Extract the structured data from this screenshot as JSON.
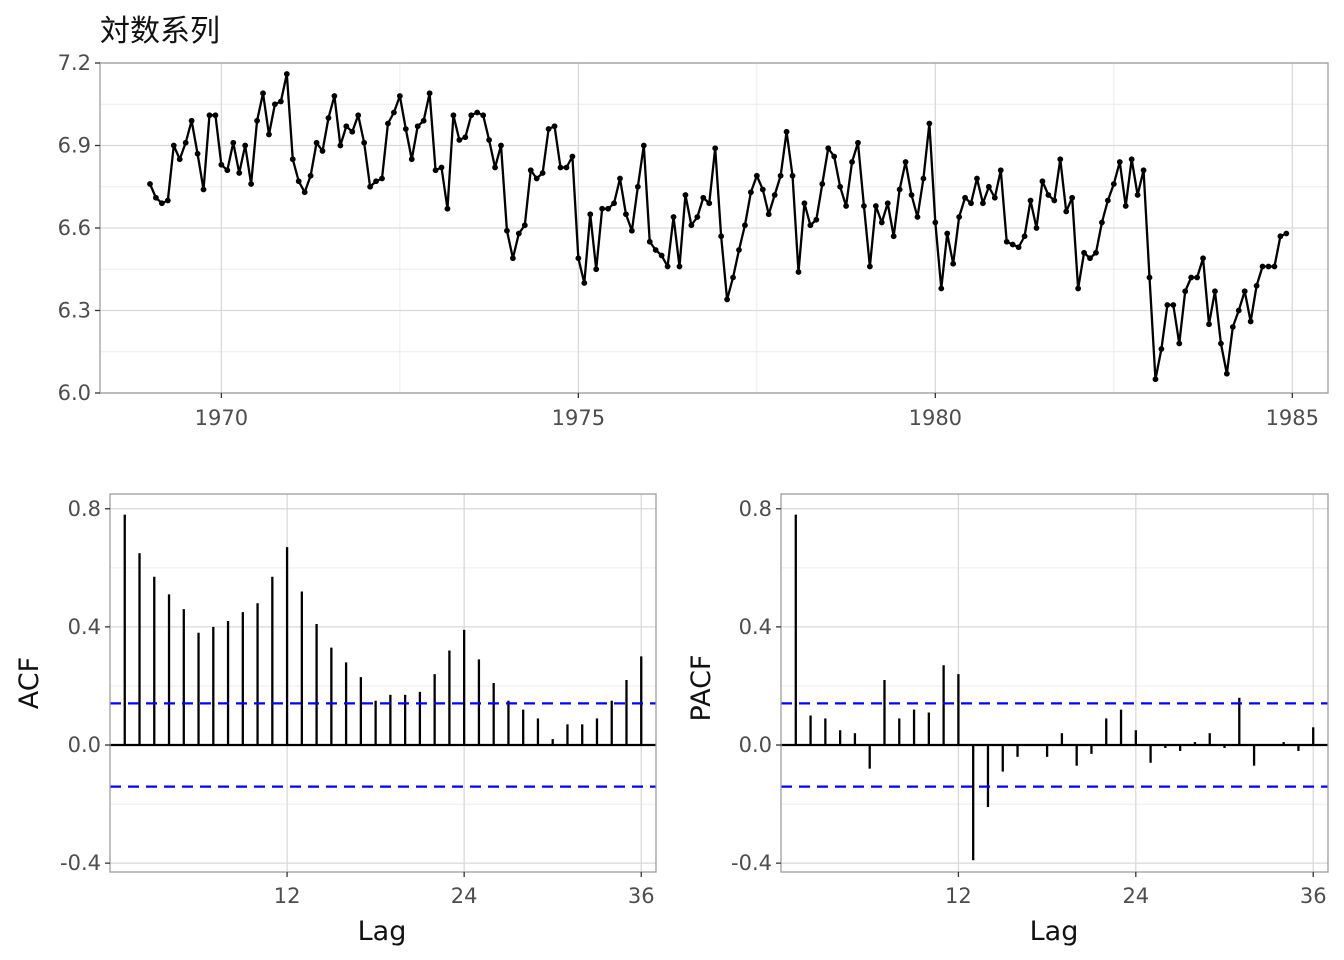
{
  "colors": {
    "line": "#000000",
    "ci": "#0000ff",
    "grid": "#d9d9d9",
    "panel_border": "#9e9e9e",
    "tick_text": "#4d4d4d"
  },
  "chart_data": [
    {
      "type": "line",
      "title": "対数系列",
      "xlabel": "",
      "ylabel": "",
      "start": {
        "year": 1969,
        "month": 1
      },
      "frequency": 12,
      "xlim": [
        1968.3,
        1985.5
      ],
      "ylim": [
        6.0,
        7.2
      ],
      "xticks": [
        1970,
        1975,
        1980,
        1985
      ],
      "xtick_labels": [
        "1970",
        "1975",
        "1980",
        "1985"
      ],
      "yticks": [
        6.0,
        6.3,
        6.6,
        6.9,
        7.2
      ],
      "ytick_labels": [
        "6.0",
        "6.3",
        "6.6",
        "6.9",
        "7.2"
      ],
      "grid": true,
      "points": true,
      "values": [
        6.76,
        6.71,
        6.69,
        6.7,
        6.9,
        6.85,
        6.91,
        6.99,
        6.87,
        6.74,
        7.01,
        7.01,
        6.83,
        6.81,
        6.91,
        6.8,
        6.9,
        6.76,
        6.99,
        7.09,
        6.94,
        7.05,
        7.06,
        7.16,
        6.85,
        6.77,
        6.73,
        6.79,
        6.91,
        6.88,
        7.0,
        7.08,
        6.9,
        6.97,
        6.95,
        7.01,
        6.91,
        6.75,
        6.77,
        6.78,
        6.98,
        7.02,
        7.08,
        6.96,
        6.85,
        6.97,
        6.99,
        7.09,
        6.81,
        6.82,
        6.67,
        7.01,
        6.92,
        6.93,
        7.01,
        7.02,
        7.01,
        6.92,
        6.82,
        6.9,
        6.59,
        6.49,
        6.58,
        6.61,
        6.81,
        6.78,
        6.8,
        6.96,
        6.97,
        6.82,
        6.82,
        6.86,
        6.49,
        6.4,
        6.65,
        6.45,
        6.67,
        6.67,
        6.69,
        6.78,
        6.65,
        6.59,
        6.75,
        6.9,
        6.55,
        6.52,
        6.5,
        6.46,
        6.64,
        6.46,
        6.72,
        6.61,
        6.64,
        6.71,
        6.69,
        6.89,
        6.57,
        6.34,
        6.42,
        6.52,
        6.61,
        6.73,
        6.79,
        6.74,
        6.65,
        6.72,
        6.79,
        6.95,
        6.79,
        6.44,
        6.69,
        6.61,
        6.63,
        6.76,
        6.89,
        6.86,
        6.75,
        6.68,
        6.84,
        6.91,
        6.68,
        6.46,
        6.68,
        6.62,
        6.69,
        6.57,
        6.74,
        6.84,
        6.72,
        6.64,
        6.78,
        6.98,
        6.62,
        6.38,
        6.58,
        6.47,
        6.64,
        6.71,
        6.69,
        6.78,
        6.69,
        6.75,
        6.71,
        6.81,
        6.55,
        6.54,
        6.53,
        6.57,
        6.7,
        6.6,
        6.77,
        6.72,
        6.7,
        6.85,
        6.66,
        6.71,
        6.38,
        6.51,
        6.49,
        6.51,
        6.62,
        6.7,
        6.76,
        6.84,
        6.68,
        6.85,
        6.72,
        6.81,
        6.42,
        6.05,
        6.16,
        6.32,
        6.32,
        6.18,
        6.37,
        6.42,
        6.42,
        6.49,
        6.25,
        6.37,
        6.18,
        6.07,
        6.24,
        6.3,
        6.37,
        6.26,
        6.39,
        6.46,
        6.46,
        6.46,
        6.57,
        6.58
      ]
    },
    {
      "type": "bar",
      "subtype": "acf",
      "xlabel": "Lag",
      "ylabel": "ACF",
      "xlim": [
        0,
        37
      ],
      "ylim": [
        -0.43,
        0.85
      ],
      "xticks": [
        12,
        24,
        36
      ],
      "xtick_labels": [
        "12",
        "24",
        "36"
      ],
      "yticks": [
        -0.4,
        0.0,
        0.4,
        0.8
      ],
      "ytick_labels": [
        "-0.4",
        "0.0",
        "0.4",
        "0.8"
      ],
      "ci": 0.141,
      "grid": true,
      "lags": [
        1,
        2,
        3,
        4,
        5,
        6,
        7,
        8,
        9,
        10,
        11,
        12,
        13,
        14,
        15,
        16,
        17,
        18,
        19,
        20,
        21,
        22,
        23,
        24,
        25,
        26,
        27,
        28,
        29,
        30,
        31,
        32,
        33,
        34,
        35,
        36
      ],
      "values": [
        0.78,
        0.65,
        0.57,
        0.51,
        0.46,
        0.38,
        0.4,
        0.42,
        0.45,
        0.48,
        0.57,
        0.67,
        0.52,
        0.41,
        0.33,
        0.28,
        0.23,
        0.15,
        0.17,
        0.17,
        0.18,
        0.24,
        0.32,
        0.39,
        0.29,
        0.21,
        0.15,
        0.12,
        0.09,
        0.02,
        0.07,
        0.07,
        0.09,
        0.15,
        0.22,
        0.3
      ]
    },
    {
      "type": "bar",
      "subtype": "pacf",
      "xlabel": "Lag",
      "ylabel": "PACF",
      "xlim": [
        0,
        37
      ],
      "ylim": [
        -0.43,
        0.85
      ],
      "xticks": [
        12,
        24,
        36
      ],
      "xtick_labels": [
        "12",
        "24",
        "36"
      ],
      "yticks": [
        -0.4,
        0.0,
        0.4,
        0.8
      ],
      "ytick_labels": [
        "-0.4",
        "0.0",
        "0.4",
        "0.8"
      ],
      "ci": 0.141,
      "grid": true,
      "lags": [
        1,
        2,
        3,
        4,
        5,
        6,
        7,
        8,
        9,
        10,
        11,
        12,
        13,
        14,
        15,
        16,
        17,
        18,
        19,
        20,
        21,
        22,
        23,
        24,
        25,
        26,
        27,
        28,
        29,
        30,
        31,
        32,
        33,
        34,
        35,
        36
      ],
      "values": [
        0.78,
        0.1,
        0.09,
        0.05,
        0.04,
        -0.08,
        0.22,
        0.09,
        0.12,
        0.11,
        0.27,
        0.24,
        -0.39,
        -0.21,
        -0.09,
        -0.04,
        0.0,
        -0.04,
        0.04,
        -0.07,
        -0.03,
        0.09,
        0.12,
        0.05,
        -0.06,
        -0.01,
        -0.02,
        0.01,
        0.04,
        -0.01,
        0.16,
        -0.07,
        0.0,
        0.01,
        -0.02,
        0.06
      ]
    }
  ]
}
